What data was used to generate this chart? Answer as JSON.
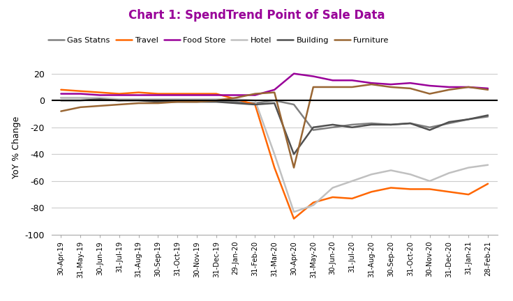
{
  "title": "Chart 1: SpendTrend Point of Sale Data",
  "title_color": "#990099",
  "ylabel": "YoY % Change",
  "ylim": [
    -100,
    30
  ],
  "yticks": [
    -100,
    -80,
    -60,
    -40,
    -20,
    0,
    20
  ],
  "background_color": "#ffffff",
  "dates": [
    "30-Apr-19",
    "31-May-19",
    "30-Jun-19",
    "31-Jul-19",
    "31-Aug-19",
    "30-Sep-19",
    "31-Oct-19",
    "30-Nov-19",
    "31-Dec-19",
    "29-Jan-20",
    "31-Feb-20",
    "31-Mar-20",
    "30-Apr-20",
    "31-May-20",
    "30-Jun-20",
    "31-Jul-20",
    "31-Aug-20",
    "30-Sep-20",
    "31-Oct-20",
    "30-Nov-20",
    "31-Dec-20",
    "31-Jan-21",
    "28-Feb-21"
  ],
  "series": {
    "Gas Statns": {
      "color": "#808080",
      "linewidth": 1.8,
      "values": [
        2,
        2,
        1,
        0,
        1,
        1,
        1,
        0,
        0,
        -1,
        -2,
        0,
        -3,
        -22,
        -20,
        -18,
        -17,
        -18,
        -17,
        -20,
        -17,
        -14,
        -12
      ]
    },
    "Travel": {
      "color": "#FF6600",
      "linewidth": 1.8,
      "values": [
        8,
        7,
        6,
        5,
        6,
        5,
        5,
        5,
        5,
        1,
        -3,
        -50,
        -88,
        -76,
        -72,
        -73,
        -68,
        -65,
        -66,
        -66,
        -68,
        -70,
        -62
      ]
    },
    "Food Store": {
      "color": "#990099",
      "linewidth": 1.8,
      "values": [
        5,
        5,
        4,
        4,
        4,
        4,
        4,
        4,
        4,
        4,
        4,
        8,
        20,
        18,
        15,
        15,
        13,
        12,
        13,
        11,
        10,
        10,
        9
      ]
    },
    "Hotel": {
      "color": "#C0C0C0",
      "linewidth": 1.8,
      "values": [
        2,
        2,
        2,
        1,
        1,
        1,
        1,
        1,
        1,
        1,
        0,
        -40,
        -83,
        -78,
        -65,
        -60,
        -55,
        -52,
        -55,
        -60,
        -54,
        -50,
        -48
      ]
    },
    "Building": {
      "color": "#505050",
      "linewidth": 1.8,
      "values": [
        0,
        0,
        1,
        0,
        0,
        -1,
        -1,
        -1,
        -1,
        -2,
        -3,
        -2,
        -40,
        -20,
        -18,
        -20,
        -18,
        -18,
        -17,
        -22,
        -16,
        -14,
        -11
      ]
    },
    "Furniture": {
      "color": "#996633",
      "linewidth": 1.8,
      "values": [
        -8,
        -5,
        -4,
        -3,
        -2,
        -2,
        -1,
        -1,
        0,
        2,
        5,
        6,
        -50,
        10,
        10,
        10,
        12,
        10,
        9,
        5,
        8,
        10,
        8
      ]
    }
  }
}
